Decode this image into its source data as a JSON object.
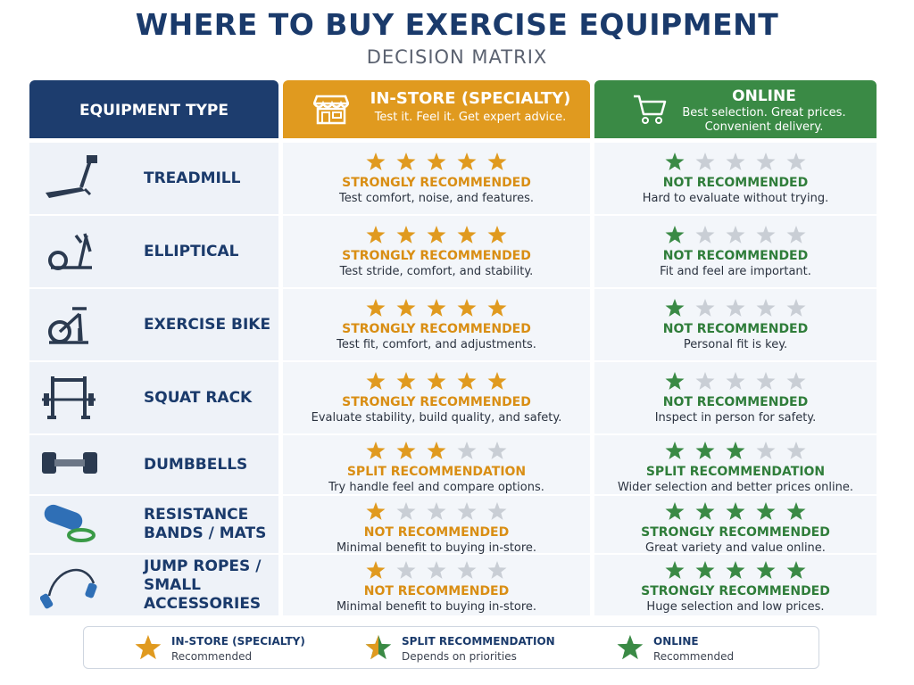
{
  "header": {
    "title": "WHERE TO BUY EXERCISE EQUIPMENT",
    "subtitle": "DECISION MATRIX"
  },
  "columns": {
    "equipment": {
      "title": "EQUIPMENT TYPE"
    },
    "in_store": {
      "title": "IN-STORE (SPECIALTY)",
      "tagline": "Test it. Feel it. Get expert advice."
    },
    "online": {
      "title": "ONLINE",
      "tagline": "Best selection. Great prices.\nConvenient delivery."
    }
  },
  "rows": [
    {
      "equipment": "TREADMILL",
      "in_store": {
        "stars": 5,
        "verdict": "STRONGLY RECOMMENDED",
        "note": "Test comfort, noise, and features."
      },
      "online": {
        "stars": 1,
        "verdict": "NOT RECOMMENDED",
        "note": "Hard to evaluate without trying."
      }
    },
    {
      "equipment": "ELLIPTICAL",
      "in_store": {
        "stars": 5,
        "verdict": "STRONGLY RECOMMENDED",
        "note": "Test stride, comfort, and stability."
      },
      "online": {
        "stars": 1,
        "verdict": "NOT RECOMMENDED",
        "note": "Fit and feel are important."
      }
    },
    {
      "equipment": "EXERCISE BIKE",
      "in_store": {
        "stars": 5,
        "verdict": "STRONGLY RECOMMENDED",
        "note": "Test fit, comfort, and adjustments."
      },
      "online": {
        "stars": 1,
        "verdict": "NOT RECOMMENDED",
        "note": "Personal fit is key."
      }
    },
    {
      "equipment": "SQUAT RACK",
      "in_store": {
        "stars": 5,
        "verdict": "STRONGLY RECOMMENDED",
        "note": "Evaluate stability, build quality, and safety."
      },
      "online": {
        "stars": 1,
        "verdict": "NOT RECOMMENDED",
        "note": "Inspect in person for safety."
      }
    },
    {
      "equipment": "DUMBBELLS",
      "in_store": {
        "stars": 3,
        "verdict": "SPLIT RECOMMENDATION",
        "note": "Try handle feel and compare options."
      },
      "online": {
        "stars": 3,
        "verdict": "SPLIT RECOMMENDATION",
        "note": "Wider selection and better prices online."
      }
    },
    {
      "equipment": "RESISTANCE\nBANDS / MATS",
      "in_store": {
        "stars": 1,
        "verdict": "NOT RECOMMENDED",
        "note": "Minimal benefit to buying in-store."
      },
      "online": {
        "stars": 5,
        "verdict": "STRONGLY RECOMMENDED",
        "note": "Great variety and value online."
      }
    },
    {
      "equipment": "JUMP ROPES /\nSMALL ACCESSORIES",
      "in_store": {
        "stars": 1,
        "verdict": "NOT RECOMMENDED",
        "note": "Minimal benefit to buying in-store."
      },
      "online": {
        "stars": 5,
        "verdict": "STRONGLY RECOMMENDED",
        "note": "Huge selection and low prices."
      }
    }
  ],
  "legend": [
    {
      "title": "IN-STORE (SPECIALTY)",
      "subtitle": "Recommended"
    },
    {
      "title": "SPLIT RECOMMENDATION",
      "subtitle": "Depends on priorities"
    },
    {
      "title": "ONLINE",
      "subtitle": "Recommended"
    }
  ]
}
